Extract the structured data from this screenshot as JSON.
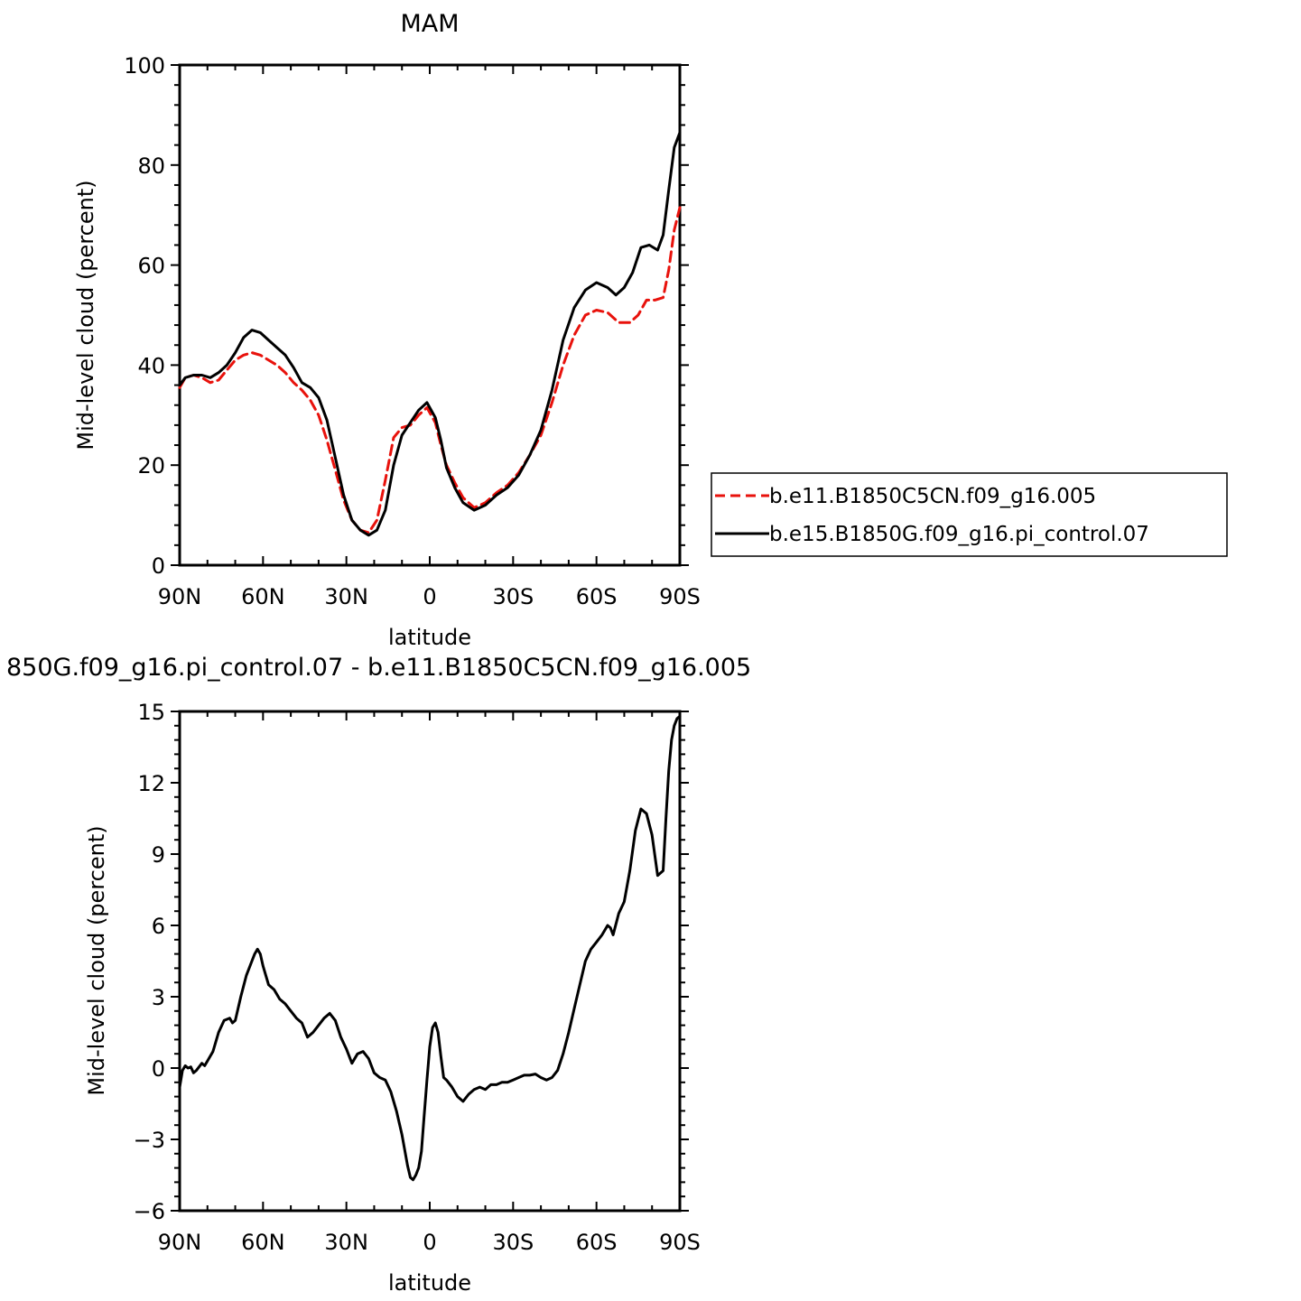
{
  "chart_data": [
    {
      "type": "line",
      "title": "MAM",
      "xlabel": "latitude",
      "ylabel": "Mid-level cloud (percent)",
      "xlim": [
        90,
        -90
      ],
      "ylim": [
        0,
        100
      ],
      "x_ticks": [
        {
          "value": 90,
          "label": "90N"
        },
        {
          "value": 60,
          "label": "60N"
        },
        {
          "value": 30,
          "label": "30N"
        },
        {
          "value": 0,
          "label": "0"
        },
        {
          "value": -30,
          "label": "30S"
        },
        {
          "value": -60,
          "label": "60S"
        },
        {
          "value": -90,
          "label": "90S"
        }
      ],
      "y_ticks": [
        {
          "value": 0,
          "label": "0"
        },
        {
          "value": 20,
          "label": "20"
        },
        {
          "value": 40,
          "label": "40"
        },
        {
          "value": 60,
          "label": "60"
        },
        {
          "value": 80,
          "label": "80"
        },
        {
          "value": 100,
          "label": "100"
        }
      ],
      "legend_position": "right",
      "series": [
        {
          "name": "b.e11.B1850C5CN.f09_g16.005",
          "color": "#e8120c",
          "dash": "dashed",
          "x": [
            90,
            88,
            85,
            82,
            79,
            76,
            73,
            70,
            67,
            64,
            61,
            58,
            55,
            52,
            49,
            46,
            43,
            40,
            37,
            34,
            31,
            28,
            25,
            22,
            19,
            16,
            13,
            10,
            7,
            4,
            1,
            -2,
            -4,
            -6,
            -9,
            -12,
            -16,
            -20,
            -24,
            -28,
            -32,
            -36,
            -40,
            -44,
            -48,
            -52,
            -56,
            -60,
            -64,
            -68,
            -72,
            -75,
            -78,
            -81,
            -84,
            -86,
            -88,
            -90
          ],
          "y": [
            35.5,
            37.5,
            38,
            37.5,
            36.5,
            37,
            39,
            41,
            42,
            42.5,
            42,
            41,
            40,
            38.5,
            36.5,
            35,
            33,
            30,
            25,
            19,
            13,
            9,
            7,
            6.5,
            9,
            17,
            25.5,
            27.5,
            28,
            30,
            31.5,
            28.5,
            24,
            20,
            16.5,
            13.5,
            11.5,
            12.5,
            14.5,
            16,
            18.5,
            22,
            26,
            32.5,
            40,
            46,
            50,
            51,
            50.5,
            48.5,
            48.5,
            50,
            53,
            53,
            53.5,
            59,
            67,
            71.5
          ]
        },
        {
          "name": "b.e15.B1850G.f09_g16.pi_control.07",
          "color": "#000000",
          "dash": "solid",
          "x": [
            90,
            88,
            85,
            82,
            79,
            76,
            73,
            70,
            67,
            64,
            61,
            58,
            55,
            52,
            49,
            46,
            43,
            40,
            37,
            34,
            31,
            28,
            25,
            22,
            19,
            16,
            13,
            10,
            7,
            4,
            1,
            -2,
            -4,
            -6,
            -9,
            -12,
            -16,
            -20,
            -24,
            -28,
            -32,
            -36,
            -40,
            -44,
            -48,
            -52,
            -56,
            -60,
            -64,
            -67,
            -70,
            -73,
            -76,
            -79,
            -82,
            -84,
            -86,
            -88,
            -90
          ],
          "y": [
            36,
            37.5,
            38,
            38,
            37.5,
            38.5,
            40,
            42.5,
            45.5,
            47,
            46.5,
            45,
            43.5,
            42,
            39.5,
            36.5,
            35.5,
            33.5,
            29,
            21.5,
            14,
            9,
            7,
            6,
            7,
            11,
            20,
            26,
            28.5,
            31,
            32.5,
            29.5,
            25,
            19.5,
            15.5,
            12.5,
            11,
            12,
            14,
            15.5,
            18,
            22,
            27,
            35,
            45,
            51.5,
            55,
            56.5,
            55.5,
            54,
            55.5,
            58.5,
            63.5,
            64,
            63,
            66,
            75,
            83.5,
            86.5
          ]
        }
      ]
    },
    {
      "type": "line",
      "title": "850G.f09_g16.pi_control.07 - b.e11.B1850C5CN.f09_g16.005",
      "xlabel": "latitude",
      "ylabel": "Mid-level cloud (percent)",
      "xlim": [
        90,
        -90
      ],
      "ylim": [
        -6,
        15
      ],
      "x_ticks": [
        {
          "value": 90,
          "label": "90N"
        },
        {
          "value": 60,
          "label": "60N"
        },
        {
          "value": 30,
          "label": "30N"
        },
        {
          "value": 0,
          "label": "0"
        },
        {
          "value": -30,
          "label": "30S"
        },
        {
          "value": -60,
          "label": "60S"
        },
        {
          "value": -90,
          "label": "90S"
        }
      ],
      "y_ticks": [
        {
          "value": -6,
          "label": "−6"
        },
        {
          "value": -3,
          "label": "−3"
        },
        {
          "value": 0,
          "label": "0"
        },
        {
          "value": 3,
          "label": "3"
        },
        {
          "value": 6,
          "label": "6"
        },
        {
          "value": 9,
          "label": "9"
        },
        {
          "value": 12,
          "label": "12"
        },
        {
          "value": 15,
          "label": "15"
        }
      ],
      "series": [
        {
          "color": "#000000",
          "dash": "solid",
          "x": [
            90,
            89,
            88,
            87,
            86,
            85,
            84,
            82,
            81,
            80,
            78,
            76,
            74,
            72,
            71,
            70,
            68,
            66,
            64,
            63,
            62,
            61,
            60,
            59,
            58,
            56,
            54,
            52,
            50,
            48,
            46,
            44,
            42,
            40,
            38,
            36,
            34,
            32,
            30,
            28,
            26,
            24,
            22,
            20,
            18,
            16,
            14,
            12,
            10,
            8,
            7,
            6,
            5,
            4,
            3,
            2,
            1,
            0,
            -1,
            -2,
            -3,
            -4,
            -5,
            -6,
            -8,
            -10,
            -12,
            -14,
            -16,
            -18,
            -20,
            -22,
            -24,
            -26,
            -28,
            -30,
            -32,
            -34,
            -36,
            -38,
            -40,
            -42,
            -44,
            -46,
            -48,
            -50,
            -52,
            -54,
            -56,
            -58,
            -60,
            -62,
            -64,
            -65,
            -66,
            -68,
            -70,
            -72,
            -74,
            -76,
            -77,
            -78,
            -80,
            -82,
            -84,
            -85,
            -86,
            -87,
            -88,
            -89,
            -90
          ],
          "y": [
            -0.8,
            -0.1,
            0.1,
            0.0,
            0.05,
            -0.2,
            -0.1,
            0.2,
            0.1,
            0.3,
            0.7,
            1.5,
            2.0,
            2.1,
            1.9,
            2.0,
            3.0,
            3.9,
            4.5,
            4.8,
            5.0,
            4.8,
            4.3,
            3.9,
            3.5,
            3.3,
            2.9,
            2.7,
            2.4,
            2.1,
            1.9,
            1.3,
            1.5,
            1.8,
            2.1,
            2.3,
            2.0,
            1.3,
            0.8,
            0.2,
            0.6,
            0.7,
            0.4,
            -0.2,
            -0.4,
            -0.5,
            -1.0,
            -1.8,
            -2.8,
            -4.1,
            -4.6,
            -4.7,
            -4.5,
            -4.2,
            -3.5,
            -2.0,
            -0.5,
            0.9,
            1.7,
            1.9,
            1.5,
            0.5,
            -0.4,
            -0.5,
            -0.8,
            -1.2,
            -1.4,
            -1.1,
            -0.9,
            -0.8,
            -0.9,
            -0.7,
            -0.7,
            -0.6,
            -0.6,
            -0.5,
            -0.4,
            -0.3,
            -0.3,
            -0.25,
            -0.4,
            -0.5,
            -0.4,
            -0.1,
            0.6,
            1.5,
            2.5,
            3.5,
            4.5,
            5.0,
            5.3,
            5.6,
            6.0,
            5.9,
            5.6,
            6.5,
            7.0,
            8.3,
            10.0,
            10.9,
            10.8,
            10.7,
            9.8,
            8.1,
            8.3,
            10.5,
            12.5,
            13.8,
            14.4,
            14.7,
            14.8
          ]
        }
      ]
    }
  ]
}
